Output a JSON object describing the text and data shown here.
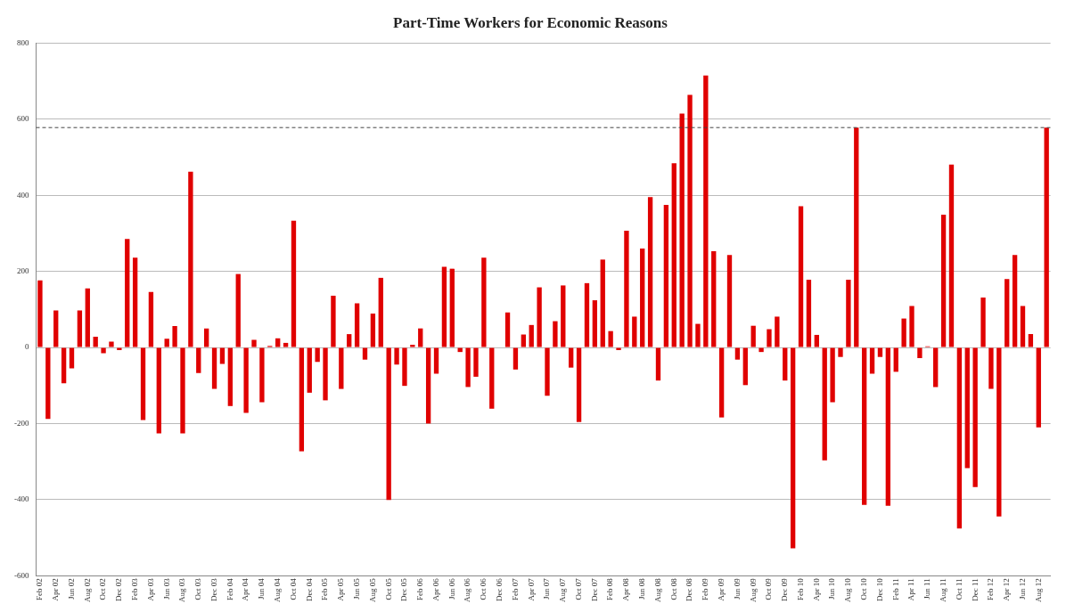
{
  "chart_data": {
    "type": "bar",
    "title": "Part-Time Workers for Economic Reasons",
    "categories": [
      "Feb 02",
      null,
      "Apr 02",
      null,
      "Jun 02",
      null,
      "Aug 02",
      null,
      "Oct 02",
      null,
      "Dec 02",
      null,
      "Feb 03",
      null,
      "Apr 03",
      null,
      "Jun 03",
      null,
      "Aug 03",
      null,
      "Oct 03",
      null,
      "Dec 03",
      null,
      "Feb 04",
      null,
      "Apr 04",
      null,
      "Jun 04",
      null,
      "Aug 04",
      null,
      "Oct 04",
      null,
      "Dec 04",
      null,
      "Feb 05",
      null,
      "Apr 05",
      null,
      "Jun 05",
      null,
      "Aug 05",
      null,
      "Oct 05",
      null,
      "Dec 05",
      null,
      "Feb 06",
      null,
      "Apr 06",
      null,
      "Jun 06",
      null,
      "Aug 06",
      null,
      "Oct 06",
      null,
      "Dec 06",
      null,
      "Feb 07",
      null,
      "Apr 07",
      null,
      "Jun 07",
      null,
      "Aug 07",
      null,
      "Oct 07",
      null,
      "Dec 07",
      null,
      "Feb 08",
      null,
      "Apr 08",
      null,
      "Jun 08",
      null,
      "Aug 08",
      null,
      "Oct 08",
      null,
      "Dec 08",
      null,
      "Feb 09",
      null,
      "Apr 09",
      null,
      "Jun 09",
      null,
      "Aug 09",
      null,
      "Oct 09",
      null,
      "Dec 09",
      null,
      "Feb 10",
      null,
      "Apr 10",
      null,
      "Jun 10",
      null,
      "Aug 10",
      null,
      "Oct 10",
      null,
      "Dec 10",
      null,
      "Feb 11",
      null,
      "Apr 11",
      null,
      "Jun 11",
      null,
      "Aug 11",
      null,
      "Oct 11",
      null,
      "Dec 11",
      null,
      "Feb 12",
      null,
      "Apr 12",
      null,
      "Jun 12",
      null,
      "Aug 12",
      null
    ],
    "values": [
      176,
      -188,
      97,
      -94,
      -55,
      97,
      155,
      28,
      -15,
      15,
      -7,
      285,
      236,
      -191,
      146,
      -226,
      23,
      56,
      -226,
      462,
      -67,
      50,
      -109,
      -43,
      -154,
      193,
      -172,
      20,
      -144,
      4,
      24,
      12,
      333,
      -273,
      -119,
      -38,
      -139,
      136,
      -109,
      35,
      116,
      -32,
      89,
      183,
      -401,
      -45,
      -101,
      7,
      50,
      -200,
      -69,
      212,
      207,
      -12,
      -104,
      -77,
      236,
      -161,
      null,
      92,
      -58,
      34,
      59,
      158,
      -127,
      69,
      163,
      -53,
      -196,
      169,
      124,
      231,
      43,
      -7,
      307,
      81,
      260,
      395,
      -87,
      375,
      484,
      615,
      664,
      62,
      715,
      253,
      -184,
      243,
      -32,
      -99,
      57,
      -12,
      48,
      81,
      -87,
      -528,
      371,
      178,
      33,
      -297,
      -144,
      -25,
      178,
      578,
      -414,
      -69,
      -25,
      -416,
      -64,
      76,
      109,
      -28,
      3,
      -104,
      349,
      481,
      -476,
      -317,
      -367,
      131,
      -109,
      -444,
      180,
      243,
      109,
      35,
      -210,
      578
    ],
    "color": "#e00000",
    "ylim": [
      -600,
      800
    ],
    "yticks": [
      -600,
      -400,
      -200,
      0,
      200,
      400,
      600,
      800
    ],
    "grid": "y",
    "ref_lines": [
      {
        "axis": "y",
        "value": 578,
        "color": "#444444",
        "line_style": "dashed"
      }
    ]
  }
}
